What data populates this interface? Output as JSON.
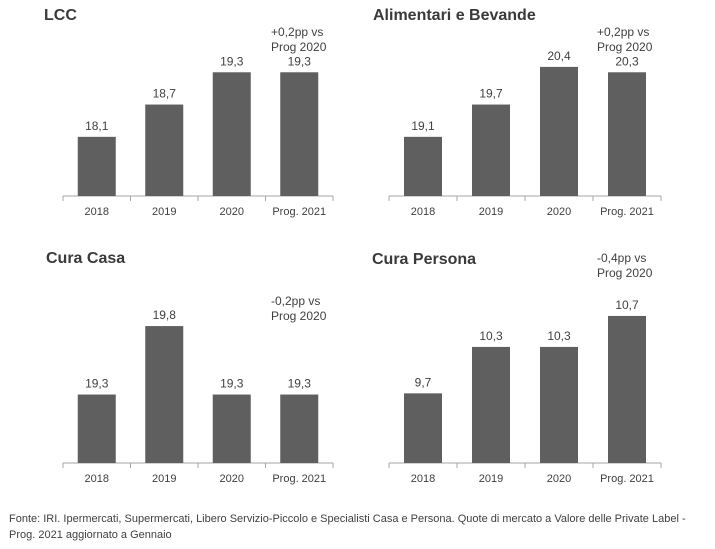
{
  "colors": {
    "bar": "#5f5f5f",
    "axis": "#a6a6a6",
    "text": "#404040"
  },
  "source": "Fonte: IRI. Ipermercati, Supermercati, Libero Servizio-Piccolo e Specialisti Casa e Persona. Quote di mercato a Valore delle Private Label - Prog. 2021 aggiornato a Gennaio",
  "chart_data": [
    {
      "type": "bar",
      "title": "LCC",
      "note_line1": "+0,2pp vs",
      "note_line2": "Prog 2020",
      "categories": [
        "2018",
        "2019",
        "2020",
        "Prog. 2021"
      ],
      "values": [
        18.1,
        18.7,
        19.3,
        19.3
      ],
      "labels": [
        "18,1",
        "18,7",
        "19,3",
        "19,3"
      ],
      "ylim": [
        17.0,
        19.9
      ]
    },
    {
      "type": "bar",
      "title": "Alimentari  e Bevande",
      "note_line1": "+0,2pp vs",
      "note_line2": "Prog 2020",
      "categories": [
        "2018",
        "2019",
        "2020",
        "Prog. 2021"
      ],
      "values": [
        19.1,
        19.7,
        20.4,
        20.3
      ],
      "labels": [
        "19,1",
        "19,7",
        "20,4",
        "20,3"
      ],
      "ylim": [
        18.0,
        20.9
      ]
    },
    {
      "type": "bar",
      "title": "Cura Casa",
      "note_line1": "-0,2pp vs",
      "note_line2": "Prog 2020",
      "categories": [
        "2018",
        "2019",
        "2020",
        "Prog. 2021"
      ],
      "values": [
        19.3,
        19.8,
        19.3,
        19.3
      ],
      "labels": [
        "19,3",
        "19,8",
        "19,3",
        "19,3"
      ],
      "ylim": [
        18.8,
        20.1
      ]
    },
    {
      "type": "bar",
      "title": "Cura Persona",
      "note_line1": "-0,4pp vs",
      "note_line2": "Prog 2020",
      "categories": [
        "2018",
        "2019",
        "2020",
        "Prog. 2021"
      ],
      "values": [
        9.7,
        10.3,
        10.3,
        10.7
      ],
      "labels": [
        "9,7",
        "10,3",
        "10,3",
        "10,7"
      ],
      "ylim": [
        8.8,
        11.1
      ]
    }
  ]
}
